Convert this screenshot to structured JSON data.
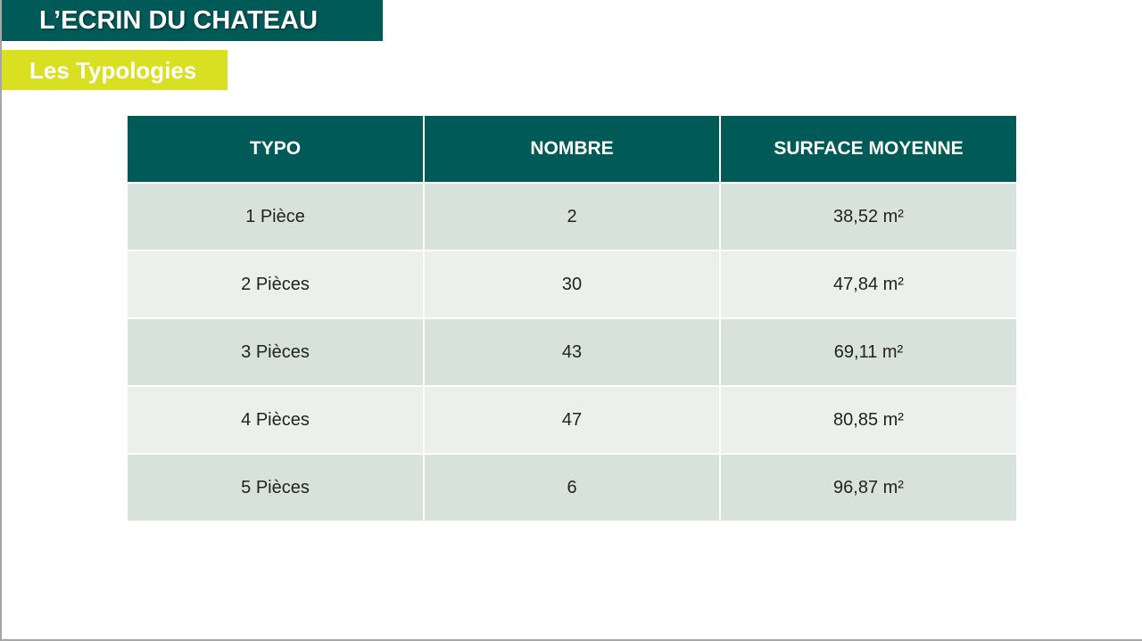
{
  "header": {
    "title": "L’ECRIN DU CHATEAU",
    "subtitle": "Les Typologies"
  },
  "colors": {
    "primary": "#005a58",
    "accent": "#d9e021",
    "row_dark": "#d8e2dc",
    "row_light": "#ebf0ec"
  },
  "table": {
    "columns": [
      "TYPO",
      "NOMBRE",
      "SURFACE MOYENNE"
    ],
    "rows": [
      [
        "1 Pièce",
        "2",
        "38,52 m²"
      ],
      [
        "2 Pièces",
        "30",
        "47,84 m²"
      ],
      [
        "3 Pièces",
        "43",
        "69,11 m²"
      ],
      [
        "4 Pièces",
        "47",
        "80,85 m²"
      ],
      [
        "5 Pièces",
        "6",
        "96,87 m²"
      ]
    ]
  }
}
